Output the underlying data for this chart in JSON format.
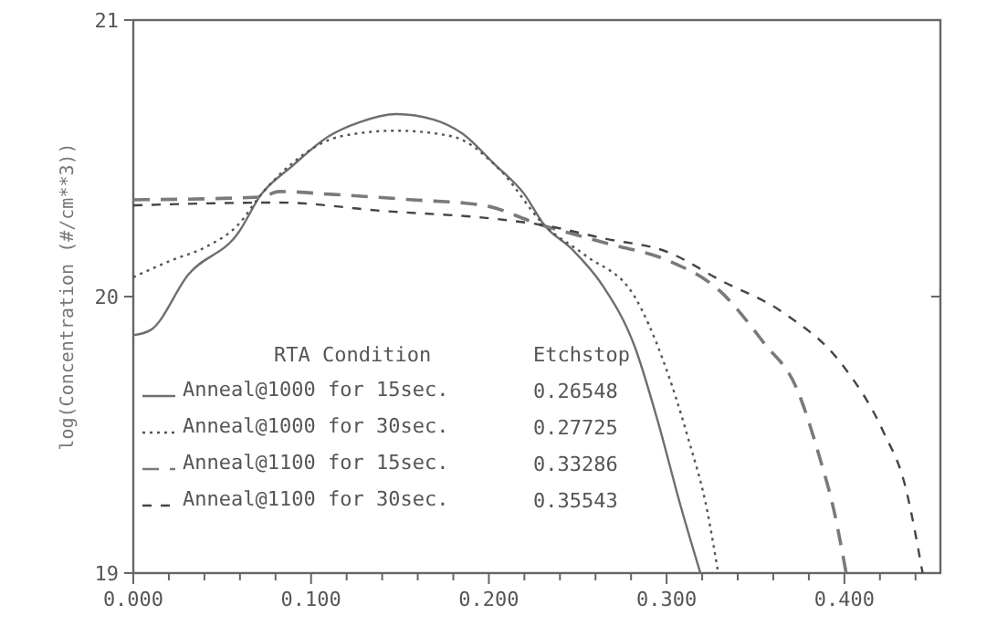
{
  "chart_data": {
    "type": "line",
    "ylabel": "log(Concentration (#/cm**3))",
    "legend_title": "RTA Condition",
    "legend": "bottom left",
    "grid": false,
    "xlim": [
      0,
      0.454
    ],
    "ylim": [
      19,
      21
    ],
    "xticks": [
      {
        "value": 0,
        "label": "0.000"
      },
      {
        "value": 0.02,
        "label": null
      },
      {
        "value": 0.04,
        "label": null
      },
      {
        "value": 0.06,
        "label": null
      },
      {
        "value": 0.08,
        "label": null
      },
      {
        "value": 0.1,
        "label": "0.100"
      },
      {
        "value": 0.12,
        "label": null
      },
      {
        "value": 0.14,
        "label": null
      },
      {
        "value": 0.16,
        "label": null
      },
      {
        "value": 0.18,
        "label": null
      },
      {
        "value": 0.2,
        "label": "0.200"
      },
      {
        "value": 0.22,
        "label": null
      },
      {
        "value": 0.24,
        "label": null
      },
      {
        "value": 0.26,
        "label": null
      },
      {
        "value": 0.28,
        "label": null
      },
      {
        "value": 0.3,
        "label": "0.300"
      },
      {
        "value": 0.32,
        "label": null
      },
      {
        "value": 0.34,
        "label": null
      },
      {
        "value": 0.36,
        "label": null
      },
      {
        "value": 0.38,
        "label": null
      },
      {
        "value": 0.4,
        "label": "0.400"
      },
      {
        "value": 0.42,
        "label": null
      },
      {
        "value": 0.44,
        "label": null
      }
    ],
    "yticks": [
      19,
      20,
      21
    ],
    "annotations": [
      "Etchstop",
      "0.26548",
      "0.27725",
      "0.33286",
      "0.35543"
    ],
    "series": [
      {
        "name": "Anneal@1000 for 15sec.",
        "color": "#6e6e6e",
        "line_style": "solid",
        "x": [
          0,
          0.01,
          0.031,
          0.059,
          0.072,
          0.089,
          0.11,
          0.127,
          0.148,
          0.169,
          0.185,
          0.203,
          0.22,
          0.231,
          0.247,
          0.264,
          0.282,
          0.295,
          0.308,
          0.319
        ],
        "values": [
          19.86,
          19.88,
          20.08,
          20.23,
          20.37,
          20.47,
          20.58,
          20.63,
          20.66,
          20.64,
          20.59,
          20.48,
          20.37,
          20.26,
          20.17,
          20.04,
          19.82,
          19.55,
          19.24,
          19.0
        ]
      },
      {
        "name": "Anneal@1000 for 30sec.",
        "color": "#555555",
        "line_style": "dotted",
        "x": [
          0,
          0.021,
          0.041,
          0.059,
          0.072,
          0.089,
          0.117,
          0.148,
          0.179,
          0.206,
          0.231,
          0.254,
          0.282,
          0.298,
          0.312,
          0.323,
          0.329
        ],
        "values": [
          20.07,
          20.13,
          20.18,
          20.26,
          20.37,
          20.48,
          20.58,
          20.6,
          20.58,
          20.46,
          20.26,
          20.15,
          20.0,
          19.77,
          19.49,
          19.22,
          19.0
        ]
      },
      {
        "name": "Anneal@1100 for 15sec.",
        "color": "#7a7a7a",
        "line_style": "dashed",
        "x": [
          0,
          0.072,
          0.082,
          0.111,
          0.157,
          0.197,
          0.229,
          0.268,
          0.301,
          0.33,
          0.355,
          0.373,
          0.386,
          0.394,
          0.401
        ],
        "values": [
          20.35,
          20.36,
          20.38,
          20.37,
          20.35,
          20.33,
          20.26,
          20.19,
          20.13,
          20.02,
          19.83,
          19.67,
          19.42,
          19.23,
          19.0
        ]
      },
      {
        "name": "Anneal@1100 for 30sec.",
        "color": "#444444",
        "line_style": "dashed",
        "x": [
          0,
          0.082,
          0.14,
          0.205,
          0.229,
          0.265,
          0.301,
          0.33,
          0.366,
          0.398,
          0.422,
          0.434,
          0.444
        ],
        "values": [
          20.33,
          20.34,
          20.31,
          20.28,
          20.26,
          20.21,
          20.16,
          20.06,
          19.94,
          19.76,
          19.51,
          19.32,
          19.0
        ]
      }
    ]
  }
}
